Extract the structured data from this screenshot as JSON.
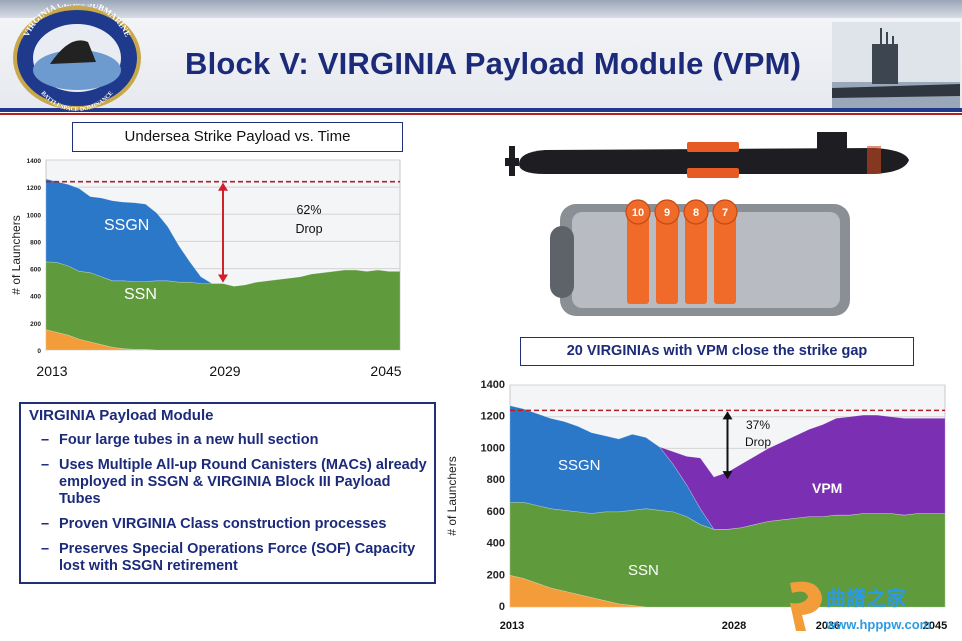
{
  "title": "Block V: VIRGINIA Payload Module (VPM)",
  "logo": {
    "ring_text_top": "VIRGINIA CLASS SUBMARINE",
    "ring_text_bottom": "BATTLESPACE DOMINANCE"
  },
  "chart1_label": "Undersea Strike Payload vs. Time",
  "chart2_label": "20 VIRGINIAs with VPM close the strike gap",
  "vpm_box": {
    "heading": "VIRGINIA Payload Module",
    "bullets": [
      "Four large tubes in a new hull section",
      "Uses Multiple All-up Round Canisters (MACs) already employed in SSGN & VIRGINIA Block III Payload Tubes",
      "Proven VIRGINIA Class construction processes",
      "Preserves Special Operations Force (SOF) Capacity lost with SSGN retirement"
    ]
  },
  "module_tubes": [
    "10",
    "9",
    "8",
    "7"
  ],
  "watermark": {
    "chars": "曲譜之家",
    "url": "www.hpppw.com"
  },
  "colors": {
    "ssgn": "#2c78c8",
    "ssn": "#5f9a3c",
    "vpm": "#7b2fb2",
    "orange": "#f39c3a",
    "title_blue": "#1c2a7a"
  },
  "chart_data": [
    {
      "type": "area",
      "ylabel": "# of Launchers",
      "ylim": [
        0,
        1400
      ],
      "yticks": [
        "0",
        "200",
        "400",
        "600",
        "800",
        "1000",
        "1200",
        "1400"
      ],
      "x_tick_labels": [
        "2013",
        "2029",
        "2045"
      ],
      "x": [
        2013,
        2014,
        2015,
        2016,
        2017,
        2018,
        2019,
        2020,
        2021,
        2022,
        2023,
        2024,
        2025,
        2026,
        2027,
        2028,
        2029,
        2030,
        2031,
        2032,
        2033,
        2034,
        2035,
        2036,
        2037,
        2038,
        2039,
        2040,
        2041,
        2042,
        2043,
        2044,
        2045
      ],
      "series": [
        {
          "name": "Orange",
          "values": [
            150,
            130,
            110,
            80,
            60,
            40,
            20,
            10,
            5,
            5,
            0,
            0,
            0,
            0,
            0,
            0,
            0,
            0,
            0,
            0,
            0,
            0,
            0,
            0,
            0,
            0,
            0,
            0,
            0,
            0,
            0,
            0,
            0
          ]
        },
        {
          "name": "SSN",
          "values": [
            500,
            515,
            510,
            500,
            510,
            500,
            490,
            500,
            500,
            500,
            510,
            510,
            500,
            500,
            490,
            490,
            490,
            470,
            480,
            500,
            510,
            520,
            530,
            540,
            560,
            570,
            580,
            590,
            590,
            580,
            590,
            580,
            580
          ]
        },
        {
          "name": "SSGN",
          "values": [
            610,
            595,
            600,
            610,
            560,
            580,
            590,
            580,
            580,
            570,
            500,
            400,
            270,
            150,
            50,
            0,
            0,
            0,
            0,
            0,
            0,
            0,
            0,
            0,
            0,
            0,
            0,
            0,
            0,
            0,
            0,
            0,
            0
          ]
        }
      ],
      "reference_line": 1240,
      "annotations": [
        "SSGN",
        "SSN",
        "62%",
        "Drop"
      ]
    },
    {
      "type": "area",
      "ylabel": "# of Launchers",
      "ylim": [
        0,
        1400
      ],
      "yticks": [
        "0",
        "200",
        "400",
        "600",
        "800",
        "1000",
        "1200",
        "1400"
      ],
      "x_tick_labels": [
        "2013",
        "2028",
        "2036",
        "2045"
      ],
      "x": [
        2013,
        2014,
        2015,
        2016,
        2017,
        2018,
        2019,
        2020,
        2021,
        2022,
        2023,
        2024,
        2025,
        2026,
        2027,
        2028,
        2029,
        2030,
        2031,
        2032,
        2033,
        2034,
        2035,
        2036,
        2037,
        2038,
        2039,
        2040,
        2041,
        2042,
        2043,
        2044,
        2045
      ],
      "series": [
        {
          "name": "Orange",
          "values": [
            200,
            180,
            150,
            120,
            100,
            80,
            60,
            40,
            20,
            10,
            0,
            0,
            0,
            0,
            0,
            0,
            0,
            0,
            0,
            0,
            0,
            0,
            0,
            0,
            0,
            0,
            0,
            0,
            0,
            0,
            0,
            0,
            0
          ]
        },
        {
          "name": "SSN",
          "values": [
            460,
            480,
            490,
            500,
            510,
            520,
            530,
            560,
            580,
            600,
            620,
            610,
            600,
            570,
            520,
            490,
            490,
            500,
            520,
            540,
            550,
            560,
            570,
            570,
            580,
            580,
            590,
            590,
            590,
            580,
            590,
            590,
            590
          ]
        },
        {
          "name": "SSGN",
          "values": [
            610,
            590,
            580,
            570,
            560,
            540,
            510,
            480,
            460,
            480,
            450,
            400,
            300,
            200,
            100,
            0,
            0,
            0,
            0,
            0,
            0,
            0,
            0,
            0,
            0,
            0,
            0,
            0,
            0,
            0,
            0,
            0,
            0
          ]
        },
        {
          "name": "VPM",
          "values": [
            0,
            0,
            0,
            0,
            0,
            0,
            0,
            0,
            0,
            0,
            0,
            0,
            80,
            180,
            320,
            330,
            360,
            400,
            430,
            460,
            490,
            520,
            550,
            580,
            610,
            620,
            620,
            620,
            610,
            610,
            600,
            600,
            600
          ]
        }
      ],
      "reference_line": 1240,
      "annotations": [
        "SSGN",
        "SSN",
        "VPM",
        "37%",
        "Drop"
      ]
    }
  ]
}
